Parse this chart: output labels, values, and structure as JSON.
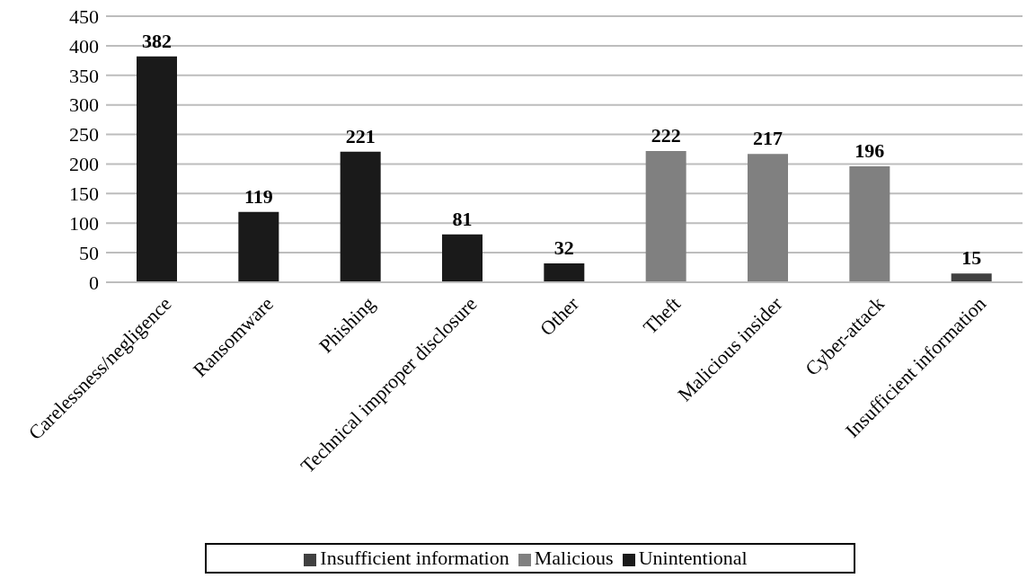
{
  "chart_data": {
    "type": "bar",
    "categories": [
      "Carelessness/negligence",
      "Ransomware",
      "Phishing",
      "Technical improper disclosure",
      "Other",
      "Theft",
      "Malicious insider",
      "Cyber-attack",
      "Insufficient information"
    ],
    "series": [
      {
        "name": "Unintentional",
        "color": "#1a1a1a",
        "values": [
          382,
          119,
          221,
          81,
          32,
          null,
          null,
          null,
          null
        ]
      },
      {
        "name": "Malicious",
        "color": "#808080",
        "values": [
          null,
          null,
          null,
          null,
          null,
          222,
          217,
          196,
          null
        ]
      },
      {
        "name": "Insufficient information",
        "color": "#404040",
        "values": [
          null,
          null,
          null,
          null,
          null,
          null,
          null,
          null,
          15
        ]
      }
    ],
    "stacked": true,
    "ylim": [
      0,
      450
    ],
    "yticks": [
      0,
      50,
      100,
      150,
      200,
      250,
      300,
      350,
      400,
      450
    ],
    "grid": "y",
    "legend": "bottom",
    "data_labels": true
  }
}
